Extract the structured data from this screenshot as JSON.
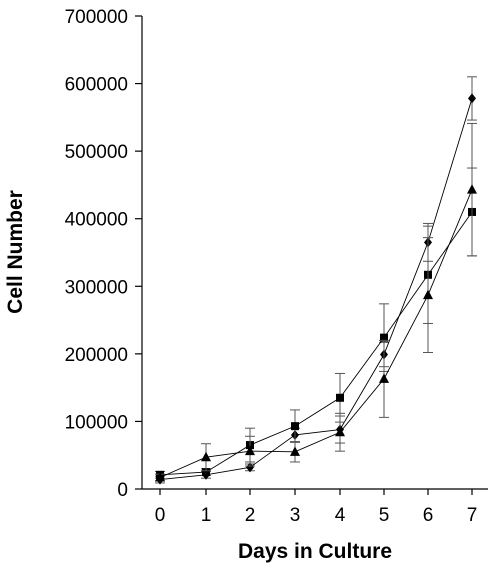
{
  "chart_data": {
    "type": "line",
    "title": "",
    "xlabel": "Days in Culture",
    "ylabel": "Cell Number",
    "x": [
      0,
      1,
      2,
      3,
      4,
      5,
      6,
      7
    ],
    "xlim": [
      0,
      7
    ],
    "ylim": [
      0,
      700000
    ],
    "yticks": [
      0,
      100000,
      200000,
      300000,
      400000,
      500000,
      600000,
      700000
    ],
    "grid": false,
    "legend": "none",
    "series": [
      {
        "marker": "diamond",
        "values": [
          14000,
          21000,
          32000,
          80000,
          88000,
          199000,
          365000,
          578000
        ],
        "errors": [
          5000,
          5000,
          5000,
          10000,
          20000,
          18000,
          28000,
          32000
        ]
      },
      {
        "marker": "square",
        "values": [
          21000,
          25000,
          65000,
          93000,
          135000,
          224000,
          317000,
          410000
        ],
        "errors": [
          5000,
          5000,
          25000,
          24000,
          36000,
          50000,
          72000,
          65000
        ]
      },
      {
        "marker": "triangle",
        "values": [
          17000,
          47000,
          56000,
          55000,
          84000,
          163000,
          287000,
          443000
        ],
        "errors": [
          5000,
          20000,
          22000,
          15000,
          28000,
          57000,
          85000,
          98000
        ]
      }
    ]
  }
}
